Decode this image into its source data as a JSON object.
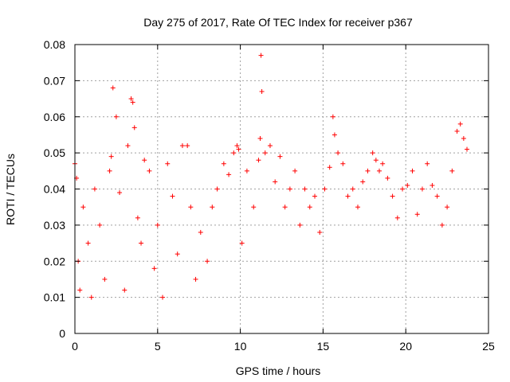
{
  "chart_data": {
    "type": "scatter",
    "title": "Day 275 of 2017, Rate Of TEC Index for receiver p367",
    "xlabel": "GPS time / hours",
    "ylabel": "ROTI / TECUs",
    "xlim": [
      0,
      25
    ],
    "ylim": [
      0,
      0.08
    ],
    "xticks": [
      "0",
      "5",
      "10",
      "15",
      "20",
      "25"
    ],
    "yticks": [
      "0",
      "0.01",
      "0.02",
      "0.03",
      "0.04",
      "0.05",
      "0.06",
      "0.07",
      "0.08"
    ],
    "grid": true,
    "marker": "plus",
    "color": "#ff0000",
    "series": [
      {
        "x": [
          0.0,
          0.1,
          0.2,
          0.3,
          0.5,
          0.8,
          1.0,
          1.2,
          1.5,
          1.8,
          2.1,
          2.2,
          2.3,
          2.5,
          2.7,
          3.0,
          3.2,
          3.4,
          3.5,
          3.6,
          3.8,
          4.0,
          4.2,
          4.5,
          4.8,
          5.0,
          5.3,
          5.6,
          5.9,
          6.2,
          6.5,
          6.8,
          7.0,
          7.3,
          7.6,
          8.0,
          8.3,
          8.6,
          9.0,
          9.3,
          9.6,
          9.8,
          9.9,
          10.1,
          10.4,
          10.8,
          11.1,
          11.2,
          11.25,
          11.3,
          11.5,
          11.8,
          12.1,
          12.4,
          12.7,
          13.0,
          13.3,
          13.6,
          13.9,
          14.2,
          14.5,
          14.8,
          15.1,
          15.4,
          15.6,
          15.7,
          15.9,
          16.2,
          16.5,
          16.8,
          17.1,
          17.4,
          17.7,
          18.0,
          18.2,
          18.4,
          18.6,
          18.9,
          19.2,
          19.5,
          19.8,
          20.1,
          20.4,
          20.7,
          21.0,
          21.3,
          21.6,
          21.9,
          22.2,
          22.5,
          22.8,
          23.1,
          23.3,
          23.5,
          23.7
        ],
        "y": [
          0.047,
          0.043,
          0.02,
          0.012,
          0.035,
          0.025,
          0.01,
          0.04,
          0.03,
          0.015,
          0.045,
          0.049,
          0.068,
          0.06,
          0.039,
          0.012,
          0.052,
          0.065,
          0.064,
          0.057,
          0.032,
          0.025,
          0.048,
          0.045,
          0.018,
          0.03,
          0.01,
          0.047,
          0.038,
          0.022,
          0.052,
          0.052,
          0.035,
          0.015,
          0.028,
          0.02,
          0.035,
          0.04,
          0.047,
          0.044,
          0.05,
          0.052,
          0.051,
          0.025,
          0.045,
          0.035,
          0.048,
          0.054,
          0.077,
          0.067,
          0.05,
          0.052,
          0.042,
          0.049,
          0.035,
          0.04,
          0.045,
          0.03,
          0.04,
          0.035,
          0.038,
          0.028,
          0.04,
          0.046,
          0.06,
          0.055,
          0.05,
          0.047,
          0.038,
          0.04,
          0.035,
          0.042,
          0.045,
          0.05,
          0.048,
          0.045,
          0.047,
          0.043,
          0.038,
          0.032,
          0.04,
          0.041,
          0.045,
          0.033,
          0.04,
          0.047,
          0.041,
          0.038,
          0.03,
          0.035,
          0.045,
          0.056,
          0.058,
          0.054,
          0.051
        ]
      }
    ]
  }
}
